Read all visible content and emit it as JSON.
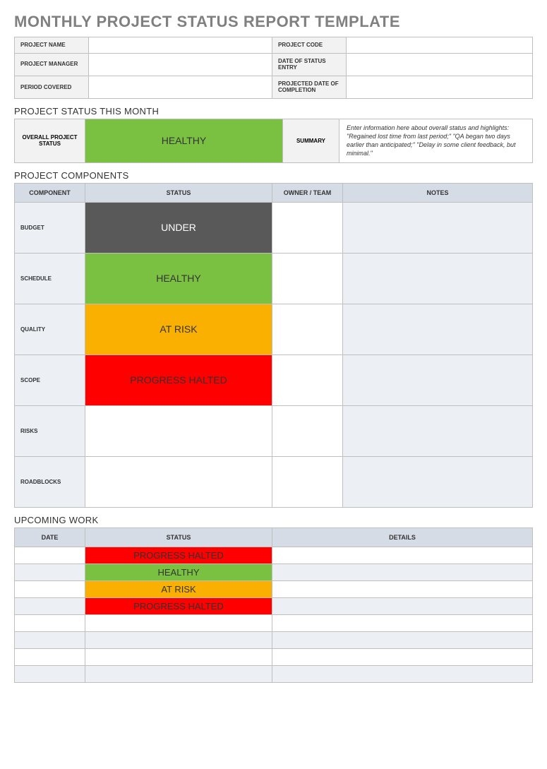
{
  "colors": {
    "healthy": "#7ac142",
    "under": "#595959",
    "at_risk": "#f9b000",
    "halted": "#ff0000",
    "header_bg": "#d6dce6",
    "alt_row_bg": "#eceff4",
    "label_bg": "#f2f2f2",
    "border": "#bfbfbf",
    "title_gray": "#808080"
  },
  "title": "MONTHLY PROJECT STATUS REPORT TEMPLATE",
  "meta": {
    "rows": [
      {
        "left_label": "PROJECT NAME",
        "left_value": "",
        "right_label": "PROJECT CODE",
        "right_value": ""
      },
      {
        "left_label": "PROJECT MANAGER",
        "left_value": "",
        "right_label": "DATE OF STATUS ENTRY",
        "right_value": ""
      },
      {
        "left_label": "PERIOD COVERED",
        "left_value": "",
        "right_label": "PROJECTED DATE OF COMPLETION",
        "right_value": ""
      }
    ]
  },
  "status_month": {
    "section_label": "PROJECT STATUS THIS MONTH",
    "overall_label": "OVERALL PROJECT STATUS",
    "overall_status": "HEALTHY",
    "overall_status_bg": "#7ac142",
    "overall_status_color": "#333333",
    "summary_label": "SUMMARY",
    "summary_text": "Enter information here about overall status and highlights: \"Regained lost time from last period;\" \"QA began two days earlier than anticipated;\" \"Delay in some client feedback, but minimal.\""
  },
  "components": {
    "section_label": "PROJECT COMPONENTS",
    "columns": [
      "COMPONENT",
      "STATUS",
      "OWNER / TEAM",
      "NOTES"
    ],
    "rows": [
      {
        "label": "BUDGET",
        "status": "UNDER",
        "status_bg": "#595959",
        "status_color": "#ffffff",
        "owner": "",
        "notes": ""
      },
      {
        "label": "SCHEDULE",
        "status": "HEALTHY",
        "status_bg": "#7ac142",
        "status_color": "#333333",
        "owner": "",
        "notes": ""
      },
      {
        "label": "QUALITY",
        "status": "AT RISK",
        "status_bg": "#f9b000",
        "status_color": "#333333",
        "owner": "",
        "notes": ""
      },
      {
        "label": "SCOPE",
        "status": "PROGRESS HALTED",
        "status_bg": "#ff0000",
        "status_color": "#333333",
        "owner": "",
        "notes": ""
      },
      {
        "label": "RISKS",
        "status": "",
        "status_bg": "#ffffff",
        "status_color": "#333333",
        "owner": "",
        "notes": ""
      },
      {
        "label": "ROADBLOCKS",
        "status": "",
        "status_bg": "#ffffff",
        "status_color": "#333333",
        "owner": "",
        "notes": ""
      }
    ]
  },
  "upcoming": {
    "section_label": "UPCOMING WORK",
    "columns": [
      "DATE",
      "STATUS",
      "DETAILS"
    ],
    "rows": [
      {
        "date": "",
        "status": "PROGRESS HALTED",
        "status_bg": "#ff0000",
        "status_color": "#333333",
        "details": ""
      },
      {
        "date": "",
        "status": "HEALTHY",
        "status_bg": "#7ac142",
        "status_color": "#333333",
        "details": ""
      },
      {
        "date": "",
        "status": "AT RISK",
        "status_bg": "#f9b000",
        "status_color": "#333333",
        "details": ""
      },
      {
        "date": "",
        "status": "PROGRESS HALTED",
        "status_bg": "#ff0000",
        "status_color": "#333333",
        "details": ""
      },
      {
        "date": "",
        "status": "",
        "status_bg": "",
        "status_color": "",
        "details": ""
      },
      {
        "date": "",
        "status": "",
        "status_bg": "",
        "status_color": "",
        "details": ""
      },
      {
        "date": "",
        "status": "",
        "status_bg": "",
        "status_color": "",
        "details": ""
      },
      {
        "date": "",
        "status": "",
        "status_bg": "",
        "status_color": "",
        "details": ""
      }
    ]
  }
}
